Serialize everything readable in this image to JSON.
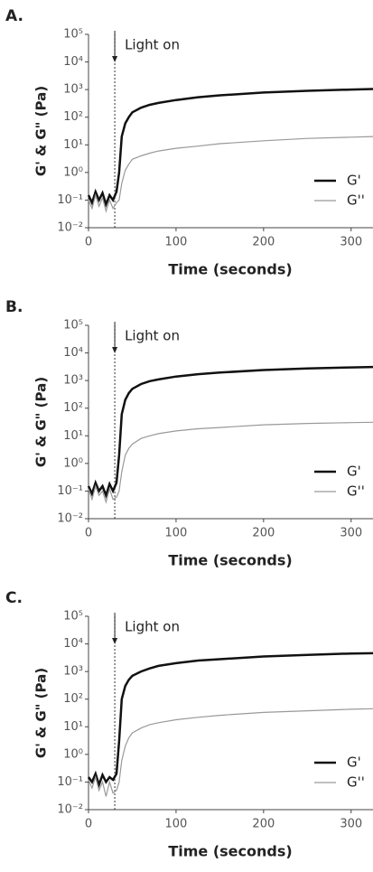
{
  "chart_data": [
    {
      "type": "line",
      "title": "A.",
      "x_label": "Time (seconds)",
      "y_label": "G' & G\" (Pa)",
      "log_y": true,
      "xlim": [
        0,
        325
      ],
      "xticks": [
        0,
        100,
        200,
        300
      ],
      "ylim": [
        0.01,
        100000
      ],
      "yticks": [
        {
          "value": 0.01,
          "label": "10⁻²"
        },
        {
          "value": 0.1,
          "label": "10⁻¹"
        },
        {
          "value": 1,
          "label": "10⁰"
        },
        {
          "value": 10,
          "label": "10¹"
        },
        {
          "value": 100,
          "label": "10²"
        },
        {
          "value": 1000,
          "label": "10³"
        },
        {
          "value": 10000,
          "label": "10⁴"
        },
        {
          "value": 100000,
          "label": "10⁵"
        }
      ],
      "annotation": {
        "text": "Light on",
        "x": 30
      },
      "legend": "lower right",
      "x": [
        0,
        4,
        8,
        12,
        16,
        20,
        24,
        28,
        32,
        35,
        38,
        42,
        46,
        50,
        60,
        70,
        80,
        100,
        125,
        150,
        200,
        250,
        300,
        325
      ],
      "series": [
        {
          "name": "G'",
          "color": "#111111",
          "values": [
            0.15,
            0.08,
            0.2,
            0.1,
            0.18,
            0.07,
            0.15,
            0.1,
            0.2,
            1,
            20,
            60,
            100,
            150,
            220,
            280,
            330,
            420,
            530,
            620,
            780,
            900,
            1000,
            1050
          ]
        },
        {
          "name": "G''",
          "color": "#999999",
          "values": [
            0.1,
            0.05,
            0.15,
            0.06,
            0.12,
            0.04,
            0.1,
            0.05,
            0.08,
            0.1,
            0.4,
            1.2,
            2,
            3,
            4,
            5,
            6,
            7.5,
            9,
            11,
            14,
            17,
            19,
            20
          ]
        }
      ]
    },
    {
      "type": "line",
      "title": "B.",
      "x_label": "Time (seconds)",
      "y_label": "G' & G\" (Pa)",
      "log_y": true,
      "xlim": [
        0,
        325
      ],
      "xticks": [
        0,
        100,
        200,
        300
      ],
      "ylim": [
        0.01,
        100000
      ],
      "yticks": [
        {
          "value": 0.01,
          "label": "10⁻²"
        },
        {
          "value": 0.1,
          "label": "10⁻¹"
        },
        {
          "value": 1,
          "label": "10⁰"
        },
        {
          "value": 10,
          "label": "10¹"
        },
        {
          "value": 100,
          "label": "10²"
        },
        {
          "value": 1000,
          "label": "10³"
        },
        {
          "value": 10000,
          "label": "10⁴"
        },
        {
          "value": 100000,
          "label": "10⁵"
        }
      ],
      "annotation": {
        "text": "Light on",
        "x": 30
      },
      "legend": "lower right",
      "x": [
        0,
        4,
        8,
        12,
        16,
        20,
        24,
        28,
        32,
        35,
        38,
        42,
        46,
        50,
        60,
        70,
        80,
        100,
        125,
        150,
        200,
        250,
        300,
        325
      ],
      "series": [
        {
          "name": "G'",
          "color": "#111111",
          "values": [
            0.15,
            0.08,
            0.2,
            0.1,
            0.15,
            0.07,
            0.18,
            0.1,
            0.2,
            2,
            60,
            200,
            350,
            500,
            750,
            950,
            1100,
            1400,
            1700,
            1950,
            2400,
            2750,
            3000,
            3100
          ]
        },
        {
          "name": "G''",
          "color": "#999999",
          "values": [
            0.12,
            0.05,
            0.15,
            0.07,
            0.1,
            0.04,
            0.12,
            0.05,
            0.06,
            0.1,
            0.5,
            2,
            3.5,
            5,
            8,
            10,
            12,
            15,
            18,
            20,
            25,
            28,
            30,
            31
          ]
        }
      ]
    },
    {
      "type": "line",
      "title": "C.",
      "x_label": "Time (seconds)",
      "y_label": "G' & G\" (Pa)",
      "log_y": true,
      "xlim": [
        0,
        325
      ],
      "xticks": [
        0,
        100,
        200,
        300
      ],
      "ylim": [
        0.01,
        100000
      ],
      "yticks": [
        {
          "value": 0.01,
          "label": "10⁻²"
        },
        {
          "value": 0.1,
          "label": "10⁻¹"
        },
        {
          "value": 1,
          "label": "10⁰"
        },
        {
          "value": 10,
          "label": "10¹"
        },
        {
          "value": 100,
          "label": "10²"
        },
        {
          "value": 1000,
          "label": "10³"
        },
        {
          "value": 10000,
          "label": "10⁴"
        },
        {
          "value": 100000,
          "label": "10⁵"
        }
      ],
      "annotation": {
        "text": "Light on",
        "x": 30
      },
      "legend": "lower right",
      "x": [
        0,
        4,
        8,
        12,
        16,
        20,
        24,
        28,
        32,
        35,
        38,
        42,
        46,
        50,
        60,
        70,
        80,
        100,
        125,
        150,
        200,
        250,
        300,
        325
      ],
      "series": [
        {
          "name": "G'",
          "color": "#111111",
          "values": [
            0.15,
            0.1,
            0.2,
            0.08,
            0.18,
            0.1,
            0.15,
            0.12,
            0.2,
            3,
            100,
            300,
            500,
            700,
            1000,
            1300,
            1600,
            2000,
            2500,
            2800,
            3500,
            4000,
            4500,
            4600
          ]
        },
        {
          "name": "G''",
          "color": "#999999",
          "values": [
            0.12,
            0.06,
            0.15,
            0.05,
            0.1,
            0.03,
            0.1,
            0.04,
            0.05,
            0.1,
            0.6,
            2,
            4,
            6,
            9,
            12,
            14,
            18,
            22,
            26,
            33,
            38,
            43,
            45
          ]
        }
      ]
    }
  ]
}
